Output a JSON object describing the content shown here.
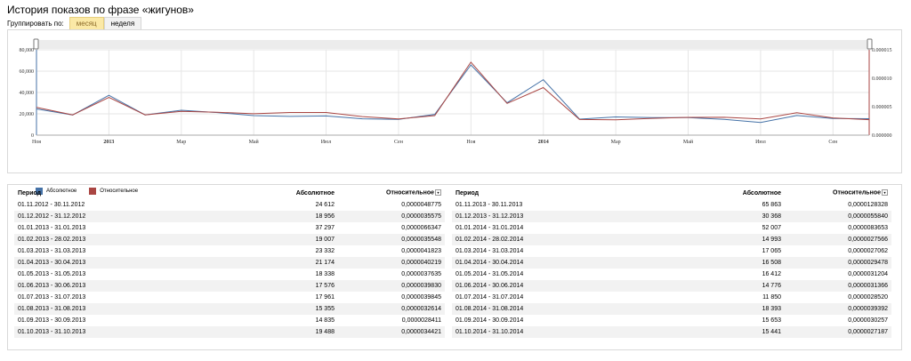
{
  "title": "История показов по фразе «жигунов»",
  "group": {
    "label": "Группировать по:",
    "options": [
      "месяц",
      "неделя"
    ],
    "active": "месяц"
  },
  "chart_data": {
    "type": "line",
    "x": [
      "11.2012",
      "12.2012",
      "01.2013",
      "02.2013",
      "03.2013",
      "04.2013",
      "05.2013",
      "06.2013",
      "07.2013",
      "08.2013",
      "09.2013",
      "10.2013",
      "11.2013",
      "12.2013",
      "01.2014",
      "02.2014",
      "03.2014",
      "04.2014",
      "05.2014",
      "06.2014",
      "07.2014",
      "08.2014",
      "09.2014",
      "10.2014"
    ],
    "x_tick_labels": [
      "Ноя",
      "2013",
      "Мар",
      "Май",
      "Июл",
      "Сен",
      "Ноя",
      "2014",
      "Мар",
      "Май",
      "Июл",
      "Сен"
    ],
    "y_left": {
      "ticks": [
        "0",
        "20,000",
        "40,000",
        "60,000",
        "80,000"
      ],
      "ylim": [
        0,
        80000
      ]
    },
    "y_right": {
      "ticks": [
        "0.000000",
        "0.000005",
        "0.000010",
        "0.000015"
      ],
      "ylim": [
        0,
        1.5e-05
      ]
    },
    "series": [
      {
        "name": "Абсолютное",
        "color": "#4572a7",
        "axis": "left",
        "values": [
          24612,
          18956,
          37297,
          19007,
          23332,
          21174,
          18338,
          17576,
          17961,
          15355,
          14835,
          19488,
          65863,
          30368,
          52007,
          14993,
          17065,
          16508,
          16412,
          14776,
          11850,
          18393,
          15653,
          15441
        ]
      },
      {
        "name": "Относительное",
        "color": "#aa4643",
        "axis": "right",
        "values": [
          4.8775e-06,
          3.5575e-06,
          6.6347e-06,
          3.5548e-06,
          4.1823e-06,
          4.0219e-06,
          3.7635e-06,
          3.983e-06,
          3.9845e-06,
          3.2614e-06,
          2.8411e-06,
          3.4421e-06,
          1.28328e-05,
          5.584e-06,
          8.3653e-06,
          2.7566e-06,
          2.7062e-06,
          2.9478e-06,
          3.1204e-06,
          3.1366e-06,
          2.852e-06,
          3.9392e-06,
          3.0257e-06,
          2.7187e-06
        ]
      }
    ]
  },
  "table": {
    "headers": {
      "period": "Период",
      "absolute": "Абсолютное",
      "relative": "Относительное"
    },
    "left": [
      [
        "01.11.2012 - 30.11.2012",
        "24 612",
        "0,0000048775"
      ],
      [
        "01.12.2012 - 31.12.2012",
        "18 956",
        "0,0000035575"
      ],
      [
        "01.01.2013 - 31.01.2013",
        "37 297",
        "0,0000066347"
      ],
      [
        "01.02.2013 - 28.02.2013",
        "19 007",
        "0,0000035548"
      ],
      [
        "01.03.2013 - 31.03.2013",
        "23 332",
        "0,0000041823"
      ],
      [
        "01.04.2013 - 30.04.2013",
        "21 174",
        "0,0000040219"
      ],
      [
        "01.05.2013 - 31.05.2013",
        "18 338",
        "0,0000037635"
      ],
      [
        "01.06.2013 - 30.06.2013",
        "17 576",
        "0,0000039830"
      ],
      [
        "01.07.2013 - 31.07.2013",
        "17 961",
        "0,0000039845"
      ],
      [
        "01.08.2013 - 31.08.2013",
        "15 355",
        "0,0000032614"
      ],
      [
        "01.09.2013 - 30.09.2013",
        "14 835",
        "0,0000028411"
      ],
      [
        "01.10.2013 - 31.10.2013",
        "19 488",
        "0,0000034421"
      ]
    ],
    "right": [
      [
        "01.11.2013 - 30.11.2013",
        "65 863",
        "0,0000128328"
      ],
      [
        "01.12.2013 - 31.12.2013",
        "30 368",
        "0,0000055840"
      ],
      [
        "01.01.2014 - 31.01.2014",
        "52 007",
        "0,0000083653"
      ],
      [
        "01.02.2014 - 28.02.2014",
        "14 993",
        "0,0000027566"
      ],
      [
        "01.03.2014 - 31.03.2014",
        "17 065",
        "0,0000027062"
      ],
      [
        "01.04.2014 - 30.04.2014",
        "16 508",
        "0,0000029478"
      ],
      [
        "01.05.2014 - 31.05.2014",
        "16 412",
        "0,0000031204"
      ],
      [
        "01.06.2014 - 30.06.2014",
        "14 776",
        "0,0000031366"
      ],
      [
        "01.07.2014 - 31.07.2014",
        "11 850",
        "0,0000028520"
      ],
      [
        "01.08.2014 - 31.08.2014",
        "18 393",
        "0,0000039392"
      ],
      [
        "01.09.2014 - 30.09.2014",
        "15 653",
        "0,0000030257"
      ],
      [
        "01.10.2014 - 31.10.2014",
        "15 441",
        "0,0000027187"
      ]
    ]
  }
}
